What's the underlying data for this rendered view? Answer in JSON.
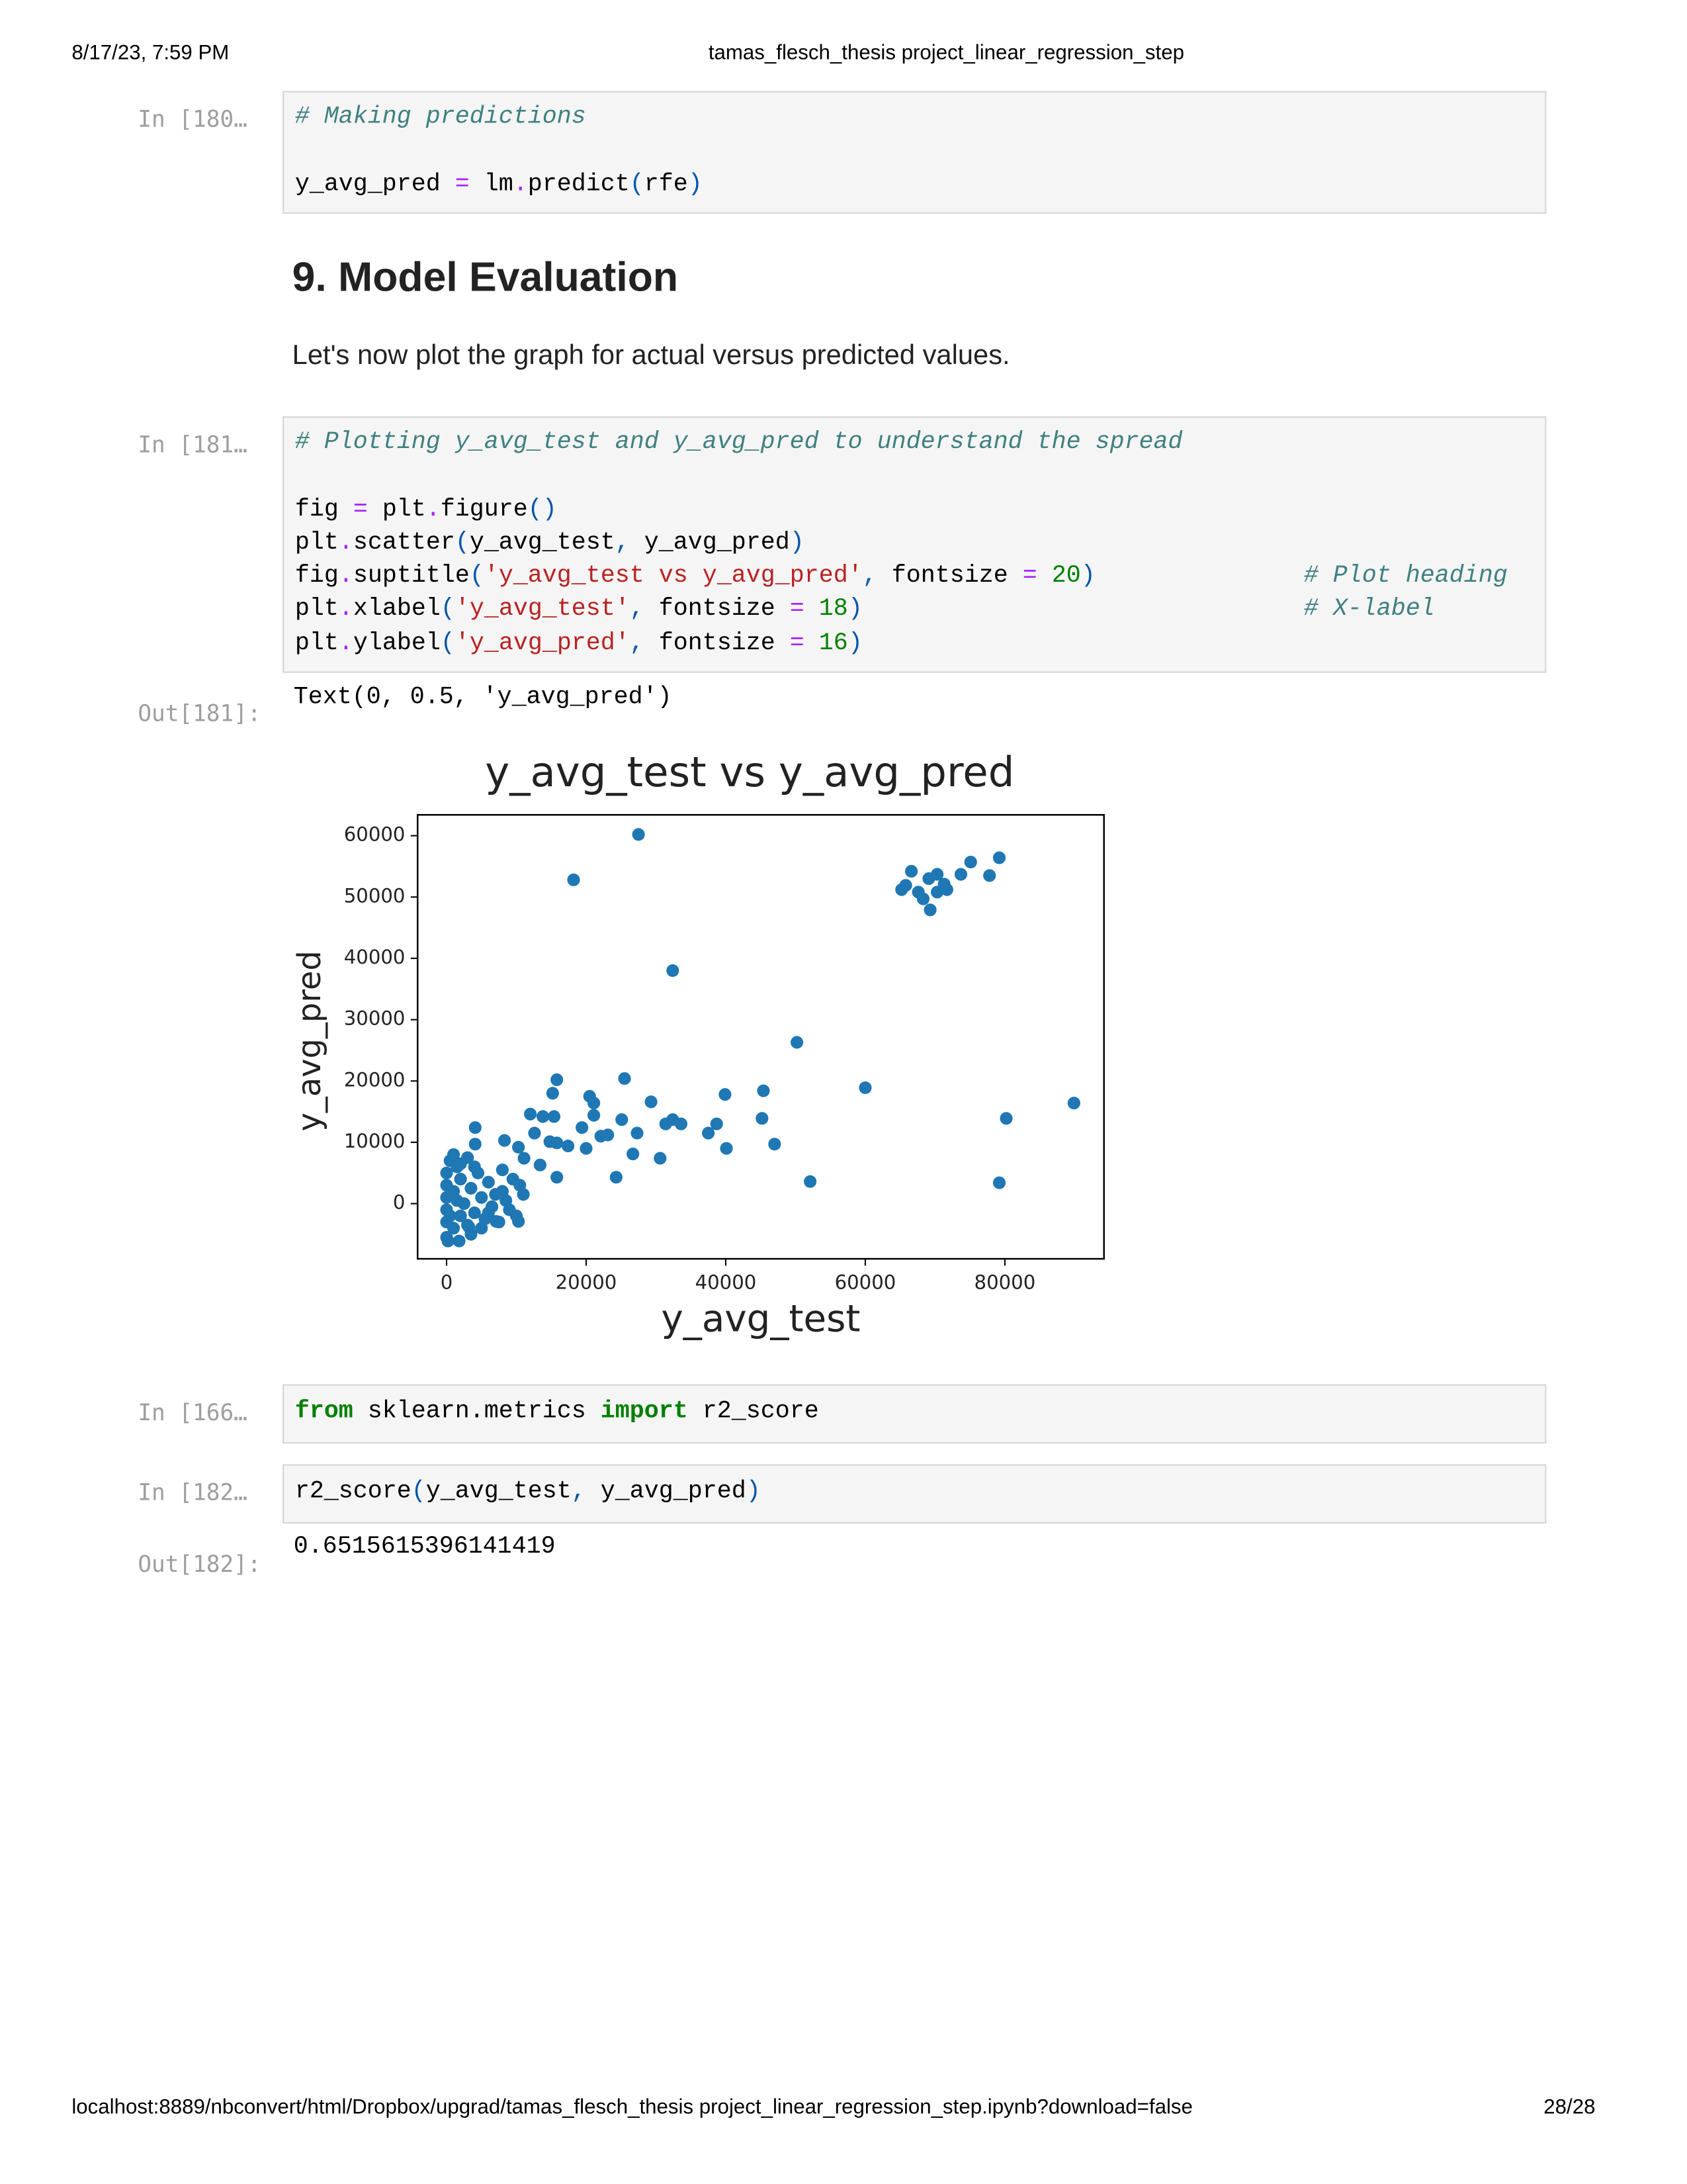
{
  "header": {
    "date": "8/17/23, 7:59 PM",
    "title": "tamas_flesch_thesis project_linear_regression_step"
  },
  "cell_180": {
    "prompt": "In [180…",
    "lines": [
      [
        "# Making predictions"
      ],
      [
        "y_avg_pred ",
        "=",
        " lm",
        ".",
        "predict",
        "(",
        "rfe",
        ")"
      ]
    ]
  },
  "markdown": {
    "heading": "9. Model Evaluation",
    "text": "Let's now plot the graph for actual versus predicted values."
  },
  "cell_181": {
    "prompt": "In [181…",
    "lines": [
      [
        "# Plotting y_avg_test and y_avg_pred to understand the spread"
      ],
      [
        "fig ",
        "=",
        " plt",
        ".",
        "figure",
        "()"
      ],
      [
        "plt",
        ".",
        "scatter",
        "(",
        "y_avg_test",
        ",",
        " y_avg_pred",
        ")"
      ],
      [
        "fig",
        ".",
        "suptitle",
        "(",
        "'y_avg_test vs y_avg_pred'",
        ",",
        " fontsize ",
        "=",
        " 20",
        ")",
        "# Plot heading"
      ],
      [
        "plt",
        ".",
        "xlabel",
        "(",
        "'y_avg_test'",
        ",",
        " fontsize ",
        "=",
        " 18",
        ")",
        "# X-label"
      ],
      [
        "plt",
        ".",
        "ylabel",
        "(",
        "'y_avg_pred'",
        ",",
        " fontsize ",
        "=",
        " 16",
        ")"
      ]
    ]
  },
  "output_181": {
    "prompt": "Out[181]:",
    "text": "Text(0, 0.5, 'y_avg_pred')"
  },
  "chart_data": {
    "type": "scatter",
    "title": "y_avg_test vs y_avg_pred",
    "x_label": "y_avg_test",
    "y_label": "y_avg_pred",
    "color": "#1f77b4",
    "x": [
      27500,
      18200,
      32400,
      50200,
      60000,
      89900,
      80200,
      79200,
      52100,
      65200,
      66600,
      67600,
      68300,
      69300,
      69100,
      70300,
      71300,
      70300,
      73700,
      75100,
      77800,
      79200,
      65800,
      71700,
      15800,
      25500,
      20500,
      21100,
      29300,
      39900,
      45400,
      45200,
      12000,
      13800,
      15400,
      15200,
      21100,
      25100,
      32400,
      33600,
      31400,
      27300,
      38700,
      37500,
      40100,
      47000,
      30600,
      26700,
      24300,
      15800,
      22100,
      19400,
      20000,
      17400,
      14800,
      12600,
      10300,
      4100,
      4100,
      8300,
      11100,
      13400,
      15800,
      23100,
      10300,
      7100,
      1800,
      3200,
      200,
      0,
      0,
      0,
      0,
      0,
      0,
      500,
      1000,
      1000,
      1500,
      2000,
      2000,
      2500,
      3000,
      3000,
      3500,
      4000,
      4500,
      5000,
      5500,
      6000,
      6500,
      7000,
      7500,
      8000,
      8500,
      9000,
      9500,
      10000,
      10500,
      11000,
      1000,
      2000,
      4000,
      5000,
      6000,
      3500,
      8000,
      500,
      1500
    ],
    "values": [
      60200,
      52800,
      38000,
      26300,
      18900,
      16400,
      13900,
      3400,
      3600,
      51200,
      54200,
      50800,
      49700,
      47900,
      53000,
      53700,
      52100,
      50800,
      53700,
      55700,
      53500,
      56400,
      51900,
      51200,
      20200,
      20400,
      17500,
      16400,
      16600,
      17800,
      18400,
      13900,
      14600,
      14200,
      14200,
      18000,
      14400,
      13700,
      13700,
      13000,
      13000,
      11500,
      13000,
      11500,
      9000,
      9700,
      7400,
      8100,
      4300,
      4300,
      11000,
      12400,
      9000,
      9400,
      10100,
      11500,
      9200,
      12400,
      9700,
      10300,
      7400,
      6300,
      9900,
      11200,
      -2900,
      -2900,
      -6100,
      -3800,
      -6100,
      -5500,
      -3000,
      -1000,
      1000,
      3000,
      5000,
      7000,
      -4000,
      2000,
      6000,
      -2000,
      4000,
      0,
      7500,
      -3500,
      2500,
      -1500,
      5000,
      1000,
      -2500,
      3500,
      -500,
      1500,
      -3000,
      2000,
      500,
      -1000,
      4000,
      -2000,
      3000,
      1500,
      8000,
      6500,
      6000,
      -4000,
      -1500,
      -5000,
      5500,
      -2000,
      500
    ],
    "xlim": [
      -4150,
      94200
    ],
    "ylim": [
      -9000,
      63400
    ],
    "xticks": [
      0,
      20000,
      40000,
      60000,
      80000
    ],
    "yticks": [
      0,
      10000,
      20000,
      30000,
      40000,
      50000,
      60000
    ],
    "grid": false
  },
  "cell_166": {
    "prompt": "In [166…",
    "lines": [
      [
        "from",
        " sklearn.metrics ",
        "import",
        " r2_score"
      ]
    ]
  },
  "cell_182": {
    "prompt": "In [182…",
    "lines": [
      [
        "r2_score",
        "(",
        "y_avg_test",
        ",",
        " y_avg_pred",
        ")"
      ]
    ]
  },
  "output_182": {
    "prompt": "Out[182]:",
    "text": "0.6515615396141419"
  },
  "footer": {
    "url": "localhost:8889/nbconvert/html/Dropbox/upgrad/tamas_flesch_thesis project_linear_regression_step.ipynb?download=false",
    "page": "28/28"
  }
}
